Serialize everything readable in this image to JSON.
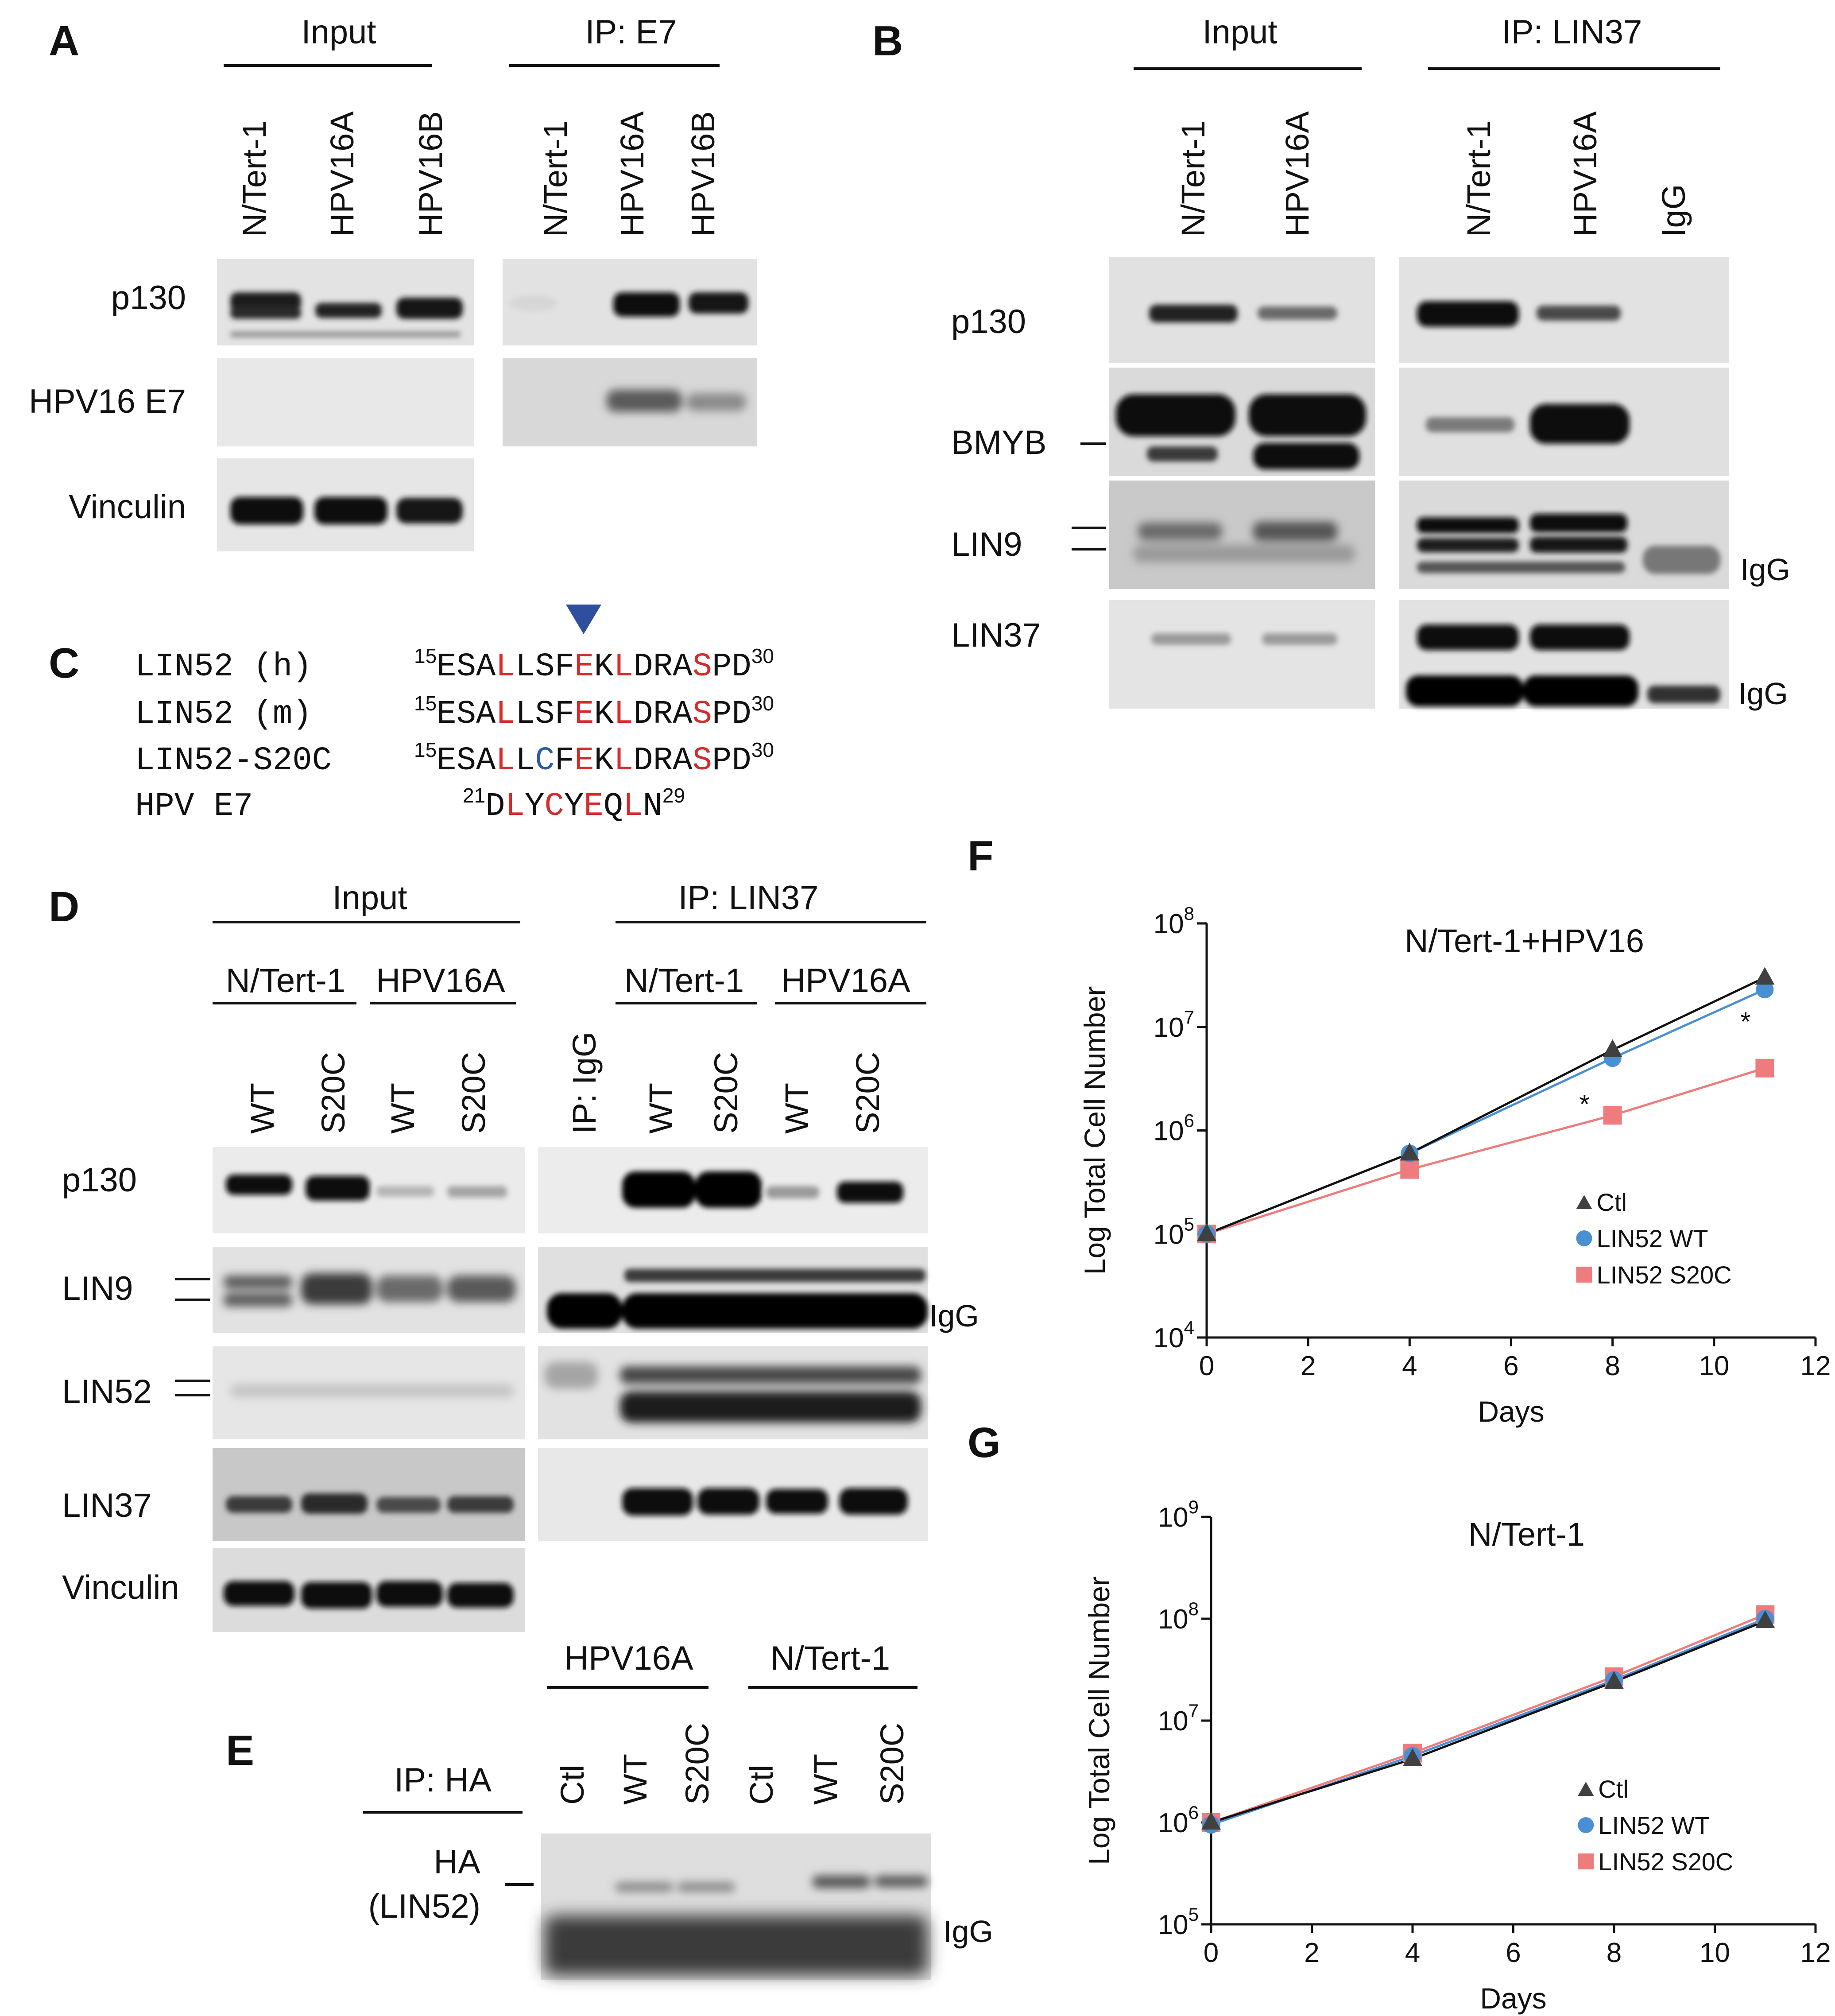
{
  "panels": {
    "a": {
      "letter": "A",
      "groups": [
        "Input",
        "IP: E7"
      ],
      "lanes": [
        "N/Tert-1",
        "HPV16A",
        "HPV16B",
        "N/Tert-1",
        "HPV16A",
        "HPV16B"
      ],
      "rows": [
        "p130",
        "HPV16 E7",
        "Vinculin"
      ]
    },
    "b": {
      "letter": "B",
      "groups": [
        "Input",
        "IP: LIN37"
      ],
      "lanes": [
        "N/Tert-1",
        "HPV16A",
        "N/Tert-1",
        "HPV16A",
        "IgG"
      ],
      "rows": [
        "p130",
        "BMYB",
        "LIN9",
        "LIN37"
      ],
      "igg": [
        "IgG",
        "IgG"
      ]
    },
    "c": {
      "letter": "C",
      "rows": [
        {
          "name": "LIN52 (h)",
          "start": "15",
          "seq": "ESALLSFEKLDRASPD",
          "end": "30"
        },
        {
          "name": "LIN52 (m)",
          "start": "15",
          "seq": "ESALLSFEKLDRASPD",
          "end": "30"
        },
        {
          "name": "LIN52-S20C",
          "start": "15",
          "seq": "ESALLCFEKLDRASPD",
          "end": "30"
        },
        {
          "name": "HPV E7",
          "start": "21",
          "seq": "DLYCYEQLN",
          "end": "29"
        }
      ],
      "highlight_color": "#d62b2b",
      "mutation_color": "#2d5aa8",
      "marker_color": "#2d4f9e"
    },
    "d": {
      "letter": "D",
      "groups": [
        "Input",
        "IP: LIN37"
      ],
      "subgroups": [
        "N/Tert-1",
        "HPV16A",
        "N/Tert-1",
        "HPV16A"
      ],
      "lanes": [
        "WT",
        "S20C",
        "WT",
        "S20C",
        "IP: IgG",
        "WT",
        "S20C",
        "WT",
        "S20C"
      ],
      "rows": [
        "p130",
        "LIN9",
        "LIN52",
        "LIN37",
        "Vinculin"
      ],
      "igg": "IgG"
    },
    "e": {
      "letter": "E",
      "ip": "IP: HA",
      "groups": [
        "HPV16A",
        "N/Tert-1"
      ],
      "lanes": [
        "Ctl",
        "WT",
        "S20C",
        "Ctl",
        "WT",
        "S20C"
      ],
      "row_line1": "HA",
      "row_line2": "(LIN52)",
      "igg": "IgG"
    },
    "f": {
      "letter": "F"
    },
    "g": {
      "letter": "G"
    }
  },
  "chart_data": [
    {
      "type": "line",
      "title": "N/Tert-1+HPV16",
      "xlabel": "Days",
      "ylabel": "Log Total Cell Number",
      "xlim": [
        0,
        12
      ],
      "xticks": [
        "0",
        "2",
        "4",
        "6",
        "8",
        "10",
        "12"
      ],
      "ylim_exp": [
        4,
        8
      ],
      "yscale": "log",
      "ytick_exps": [
        "4",
        "5",
        "6",
        "7",
        "8"
      ],
      "legend_position": "lower-right",
      "annotations": [
        "*",
        "*"
      ],
      "x": [
        0,
        4,
        8,
        11
      ],
      "series": [
        {
          "name": "Ctl",
          "marker": "triangle",
          "color": "#404040",
          "values": [
            100000,
            600000,
            6000000,
            30000000
          ]
        },
        {
          "name": "LIN52 WT",
          "marker": "circle",
          "color": "#4a8fd4",
          "values": [
            100000,
            600000,
            5000000,
            23000000
          ]
        },
        {
          "name": "LIN52 S20C",
          "marker": "square",
          "color": "#ef7c7c",
          "values": [
            100000,
            420000,
            1400000,
            4000000
          ]
        }
      ]
    },
    {
      "type": "line",
      "title": "N/Tert-1",
      "xlabel": "Days",
      "ylabel": "Log Total Cell Number",
      "xlim": [
        0,
        12
      ],
      "xticks": [
        "0",
        "2",
        "4",
        "6",
        "8",
        "10",
        "12"
      ],
      "ylim_exp": [
        5,
        9
      ],
      "yscale": "log",
      "ytick_exps": [
        "5",
        "6",
        "7",
        "8",
        "9"
      ],
      "legend_position": "lower-right",
      "x": [
        0,
        4,
        8,
        11
      ],
      "series": [
        {
          "name": "Ctl",
          "marker": "triangle",
          "color": "#404040",
          "values": [
            1000000,
            4200000,
            24000000,
            95000000
          ]
        },
        {
          "name": "LIN52 WT",
          "marker": "circle",
          "color": "#4a8fd4",
          "values": [
            950000,
            4500000,
            25000000,
            100000000
          ]
        },
        {
          "name": "LIN52 S20C",
          "marker": "square",
          "color": "#ef7c7c",
          "values": [
            1000000,
            4800000,
            27000000,
            110000000
          ]
        }
      ]
    }
  ]
}
